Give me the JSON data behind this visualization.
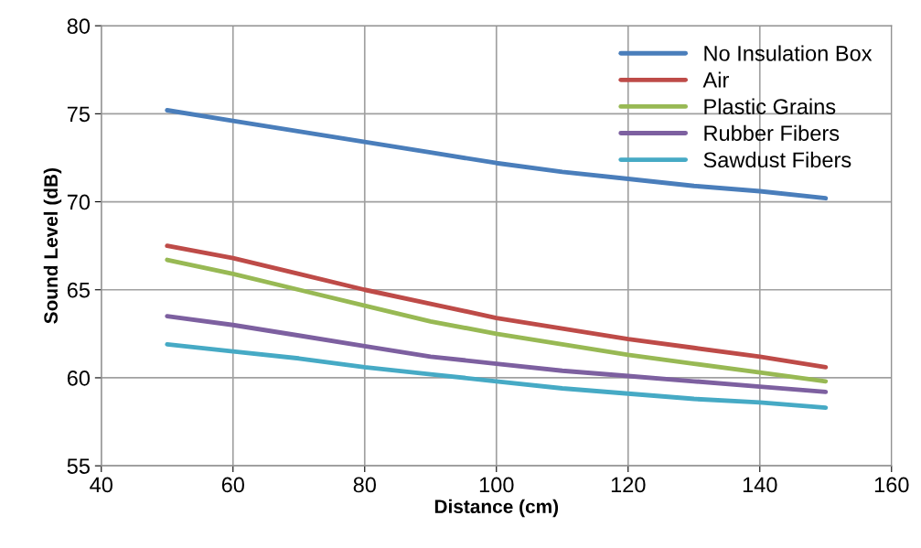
{
  "chart_data": {
    "type": "line",
    "xlabel": "Distance (cm)",
    "ylabel": "Sound Level (dB)",
    "x": [
      50,
      60,
      70,
      80,
      90,
      100,
      110,
      120,
      130,
      140,
      150
    ],
    "series": [
      {
        "name": "No Insulation Box",
        "color": "#4a7ebb",
        "values": [
          75.2,
          74.6,
          74.0,
          73.4,
          72.8,
          72.2,
          71.7,
          71.3,
          70.9,
          70.6,
          70.2
        ]
      },
      {
        "name": "Air",
        "color": "#be4b48",
        "values": [
          67.5,
          66.8,
          65.9,
          65.0,
          64.2,
          63.4,
          62.8,
          62.2,
          61.7,
          61.2,
          60.6
        ]
      },
      {
        "name": "Plastic Grains",
        "color": "#98b954",
        "values": [
          66.7,
          65.9,
          65.0,
          64.1,
          63.2,
          62.5,
          61.9,
          61.3,
          60.8,
          60.3,
          59.8
        ]
      },
      {
        "name": "Rubber Fibers",
        "color": "#7d60a0",
        "values": [
          63.5,
          63.0,
          62.4,
          61.8,
          61.2,
          60.8,
          60.4,
          60.1,
          59.8,
          59.5,
          59.2
        ]
      },
      {
        "name": "Sawdust Fibers",
        "color": "#46aac5",
        "values": [
          61.9,
          61.5,
          61.1,
          60.6,
          60.2,
          59.8,
          59.4,
          59.1,
          58.8,
          58.6,
          58.3
        ]
      }
    ],
    "xlim": [
      40,
      160
    ],
    "xticks": [
      40,
      60,
      80,
      100,
      120,
      140,
      160
    ],
    "ylim": [
      55,
      80
    ],
    "yticks": [
      55,
      60,
      65,
      70,
      75,
      80
    ],
    "grid": true,
    "legend": "top right",
    "marker": "none",
    "line_style": "solid"
  }
}
